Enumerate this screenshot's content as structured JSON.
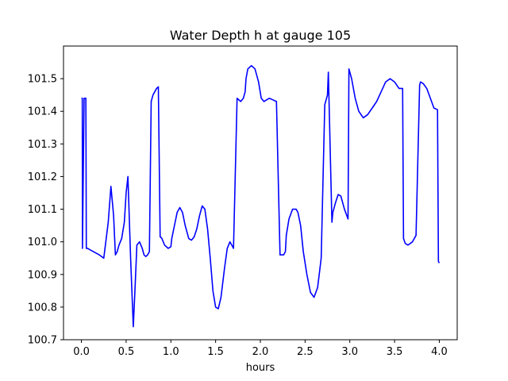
{
  "chart_data": {
    "type": "line",
    "title": "Water Depth h at gauge 105",
    "xlabel": "hours",
    "ylabel": "",
    "xlim": [
      -0.2,
      4.2
    ],
    "ylim": [
      100.7,
      101.6
    ],
    "xticks": [
      0.0,
      0.5,
      1.0,
      1.5,
      2.0,
      2.5,
      3.0,
      3.5,
      4.0
    ],
    "xtick_labels": [
      "0.0",
      "0.5",
      "1.0",
      "1.5",
      "2.0",
      "2.5",
      "3.0",
      "3.5",
      "4.0"
    ],
    "yticks": [
      100.7,
      100.8,
      100.9,
      101.0,
      101.1,
      101.2,
      101.3,
      101.4,
      101.5
    ],
    "ytick_labels": [
      "100.7",
      "100.8",
      "100.9",
      "101.0",
      "101.1",
      "101.2",
      "101.3",
      "101.4",
      "101.5"
    ],
    "grid": false,
    "legend": "none",
    "series": [
      {
        "color": "#0000ff",
        "x": [
          0.0,
          0.01,
          0.012,
          0.03,
          0.05,
          0.055,
          0.07,
          0.1,
          0.2,
          0.25,
          0.3,
          0.33,
          0.36,
          0.38,
          0.4,
          0.42,
          0.45,
          0.48,
          0.5,
          0.52,
          0.55,
          0.58,
          0.6,
          0.62,
          0.65,
          0.68,
          0.7,
          0.72,
          0.74,
          0.76,
          0.78,
          0.8,
          0.82,
          0.84,
          0.86,
          0.88,
          0.885,
          0.9,
          0.93,
          0.97,
          1.0,
          1.01,
          1.04,
          1.07,
          1.1,
          1.13,
          1.16,
          1.2,
          1.23,
          1.26,
          1.29,
          1.32,
          1.35,
          1.38,
          1.41,
          1.44,
          1.47,
          1.5,
          1.53,
          1.56,
          1.6,
          1.63,
          1.66,
          1.7,
          1.74,
          1.78,
          1.81,
          1.83,
          1.84,
          1.86,
          1.9,
          1.94,
          1.98,
          2.01,
          2.04,
          2.07,
          2.1,
          2.14,
          2.18,
          2.22,
          2.26,
          2.28,
          2.29,
          2.32,
          2.36,
          2.4,
          2.42,
          2.45,
          2.48,
          2.52,
          2.56,
          2.6,
          2.64,
          2.68,
          2.72,
          2.75,
          2.76,
          2.8,
          2.81,
          2.84,
          2.87,
          2.9,
          2.94,
          2.98,
          2.99,
          3.02,
          3.06,
          3.1,
          3.15,
          3.2,
          3.25,
          3.3,
          3.35,
          3.4,
          3.45,
          3.5,
          3.55,
          3.59,
          3.6,
          3.62,
          3.65,
          3.7,
          3.74,
          3.78,
          3.79,
          3.82,
          3.86,
          3.9,
          3.94,
          3.98,
          3.99,
          4.0
        ],
        "y": [
          101.44,
          101.44,
          100.98,
          101.44,
          101.44,
          100.98,
          100.98,
          100.975,
          100.96,
          100.95,
          101.06,
          101.17,
          101.08,
          100.96,
          100.97,
          100.99,
          101.01,
          101.06,
          101.15,
          101.2,
          100.95,
          100.74,
          100.86,
          100.99,
          101.0,
          100.98,
          100.96,
          100.955,
          100.96,
          100.97,
          101.43,
          101.45,
          101.46,
          101.47,
          101.475,
          101.015,
          101.015,
          101.01,
          100.99,
          100.98,
          100.985,
          101.01,
          101.05,
          101.09,
          101.105,
          101.09,
          101.05,
          101.01,
          101.005,
          101.015,
          101.04,
          101.08,
          101.11,
          101.1,
          101.04,
          100.95,
          100.85,
          100.8,
          100.795,
          100.83,
          100.92,
          100.98,
          101.0,
          100.98,
          101.44,
          101.43,
          101.44,
          101.46,
          101.5,
          101.53,
          101.54,
          101.53,
          101.49,
          101.44,
          101.43,
          101.435,
          101.44,
          101.435,
          101.43,
          100.96,
          100.96,
          100.97,
          101.02,
          101.07,
          101.1,
          101.1,
          101.09,
          101.05,
          100.97,
          100.9,
          100.845,
          100.83,
          100.86,
          100.95,
          101.42,
          101.45,
          101.52,
          101.06,
          101.09,
          101.12,
          101.145,
          101.14,
          101.1,
          101.07,
          101.53,
          101.5,
          101.44,
          101.4,
          101.38,
          101.39,
          101.41,
          101.43,
          101.46,
          101.49,
          101.5,
          101.49,
          101.47,
          101.47,
          101.01,
          100.995,
          100.99,
          101.0,
          101.02,
          101.48,
          101.49,
          101.485,
          101.47,
          101.44,
          101.41,
          101.405,
          100.94,
          100.935
        ]
      }
    ]
  }
}
